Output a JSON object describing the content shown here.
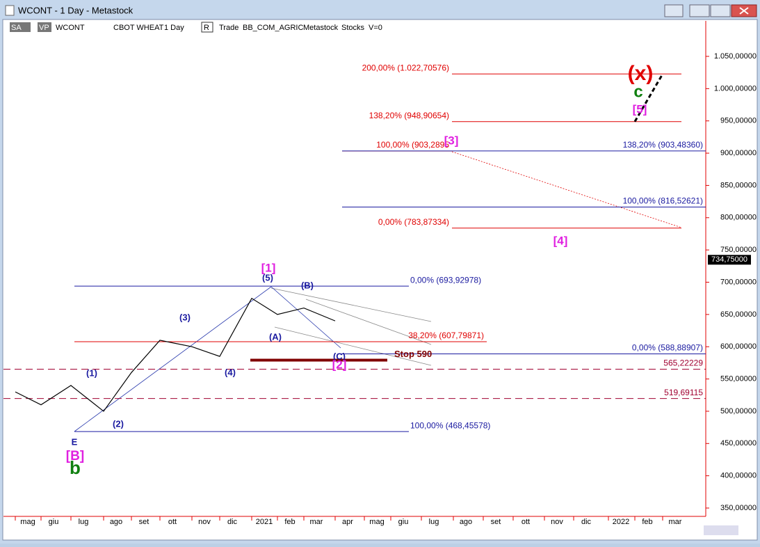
{
  "window": {
    "title": "WCONT - 1 Day - Metastock"
  },
  "toolbar": {
    "items": [
      "SA",
      "VP",
      "WCONT",
      "CBOT WHEAT",
      "1 Day",
      "R",
      "Trade",
      "BB_COM_AGRIC",
      "Metastock",
      "Stocks",
      "V=0"
    ]
  },
  "chart_data": {
    "type": "line",
    "categories": [
      "mag",
      "giu",
      "lug",
      "ago",
      "set",
      "ott",
      "nov",
      "dic",
      "2021",
      "feb",
      "mar",
      "apr",
      "mag",
      "giu",
      "lug",
      "ago",
      "set",
      "ott",
      "nov",
      "dic",
      "2022",
      "feb",
      "mar"
    ],
    "series": [
      {
        "color": "#000000",
        "values": [
          530,
          510,
          540,
          500,
          560,
          610,
          600,
          585,
          675,
          650,
          660,
          640,
          null,
          null,
          null,
          null,
          null,
          null,
          null,
          null,
          null,
          null,
          null
        ]
      },
      {
        "color": "#000000",
        "values": [
          null,
          null,
          null,
          null,
          null,
          null,
          null,
          null,
          null,
          null,
          null,
          null,
          705,
          null,
          null,
          903.2895,
          null,
          null,
          null,
          785,
          null,
          948.90654,
          null
        ]
      },
      {
        "color": "#000000",
        "dashed": true,
        "values": [
          null,
          null,
          null,
          null,
          null,
          null,
          null,
          null,
          null,
          null,
          null,
          null,
          null,
          null,
          null,
          null,
          null,
          null,
          null,
          null,
          null,
          948.90654,
          1022.70576
        ]
      }
    ],
    "ylim": [
      330,
      1085
    ],
    "yticks": [
      {
        "value": 350,
        "label": "350,00000"
      },
      {
        "value": 400,
        "label": "400,00000"
      },
      {
        "value": 450,
        "label": "450,00000"
      },
      {
        "value": 500,
        "label": "500,00000"
      },
      {
        "value": 550,
        "label": "550,00000"
      },
      {
        "value": 600,
        "label": "600,00000"
      },
      {
        "value": 650,
        "label": "650,00000"
      },
      {
        "value": 700,
        "label": "700,00000"
      },
      {
        "value": 750,
        "label": "750,00000"
      },
      {
        "value": 800,
        "label": "800,00000"
      },
      {
        "value": 850,
        "label": "850,00000"
      },
      {
        "value": 900,
        "label": "900,00000"
      },
      {
        "value": 950,
        "label": "950,00000"
      },
      {
        "value": 1000,
        "label": "1.000,00000"
      },
      {
        "value": 1050,
        "label": "1.050,00000"
      }
    ],
    "levels": [
      {
        "value": 1022.70576,
        "label": "200,00% (1.022,70576)",
        "color": "#e00000"
      },
      {
        "value": 948.90654,
        "label": "138,20% (948,90654)",
        "color": "#e00000"
      },
      {
        "value": 903.2895,
        "label": "100,00% (903,2895",
        "color": "#e00000"
      },
      {
        "value": 903.4836,
        "label": "138,20% (903,48360)",
        "color": "#1a1aa0"
      },
      {
        "value": 816.52621,
        "label": "100,00% (816,52621)",
        "color": "#1a1aa0"
      },
      {
        "value": 783.87334,
        "label": "0,00% (783,87334)",
        "color": "#e00000"
      },
      {
        "value": 693.92978,
        "label": "0,00% (693,92978)",
        "color": "#1a1aa0"
      },
      {
        "value": 607.79871,
        "label": "38,20% (607,79871)",
        "color": "#e00000"
      },
      {
        "value": 588.88907,
        "label": "0,00% (588,88907)",
        "color": "#1a1aa0"
      },
      {
        "value": 565.22229,
        "label": "565,22229",
        "color": "#a00030"
      },
      {
        "value": 519.69115,
        "label": "519,69115",
        "color": "#a00030"
      },
      {
        "value": 468.45578,
        "label": "100,00% (468,45578)",
        "color": "#1a1aa0"
      },
      {
        "value": 590,
        "label": "Stop 590",
        "color": "#800000"
      }
    ],
    "last_price": {
      "value": 734.75,
      "label": "734,75000"
    },
    "annotations": [
      {
        "text": "(x)",
        "color": "#e00000"
      },
      {
        "text": "c",
        "color": "#108010"
      },
      {
        "text": "[5]",
        "color": "#e020e0"
      },
      {
        "text": "[3]",
        "color": "#e020e0"
      },
      {
        "text": "[4]",
        "color": "#e020e0"
      },
      {
        "text": "[1]",
        "color": "#e020e0"
      },
      {
        "text": "(5)",
        "color": "#1a1aa0"
      },
      {
        "text": "(B)",
        "color": "#1a1aa0"
      },
      {
        "text": "(3)",
        "color": "#1a1aa0"
      },
      {
        "text": "(A)",
        "color": "#1a1aa0"
      },
      {
        "text": "(C)",
        "color": "#1a1aa0"
      },
      {
        "text": "[2]",
        "color": "#e020e0"
      },
      {
        "text": "(4)",
        "color": "#1a1aa0"
      },
      {
        "text": "(1)",
        "color": "#1a1aa0"
      },
      {
        "text": "(2)",
        "color": "#1a1aa0"
      },
      {
        "text": "E",
        "color": "#1a1aa0"
      },
      {
        "text": "[B]",
        "color": "#e020e0"
      },
      {
        "text": "b",
        "color": "#108010"
      }
    ]
  }
}
